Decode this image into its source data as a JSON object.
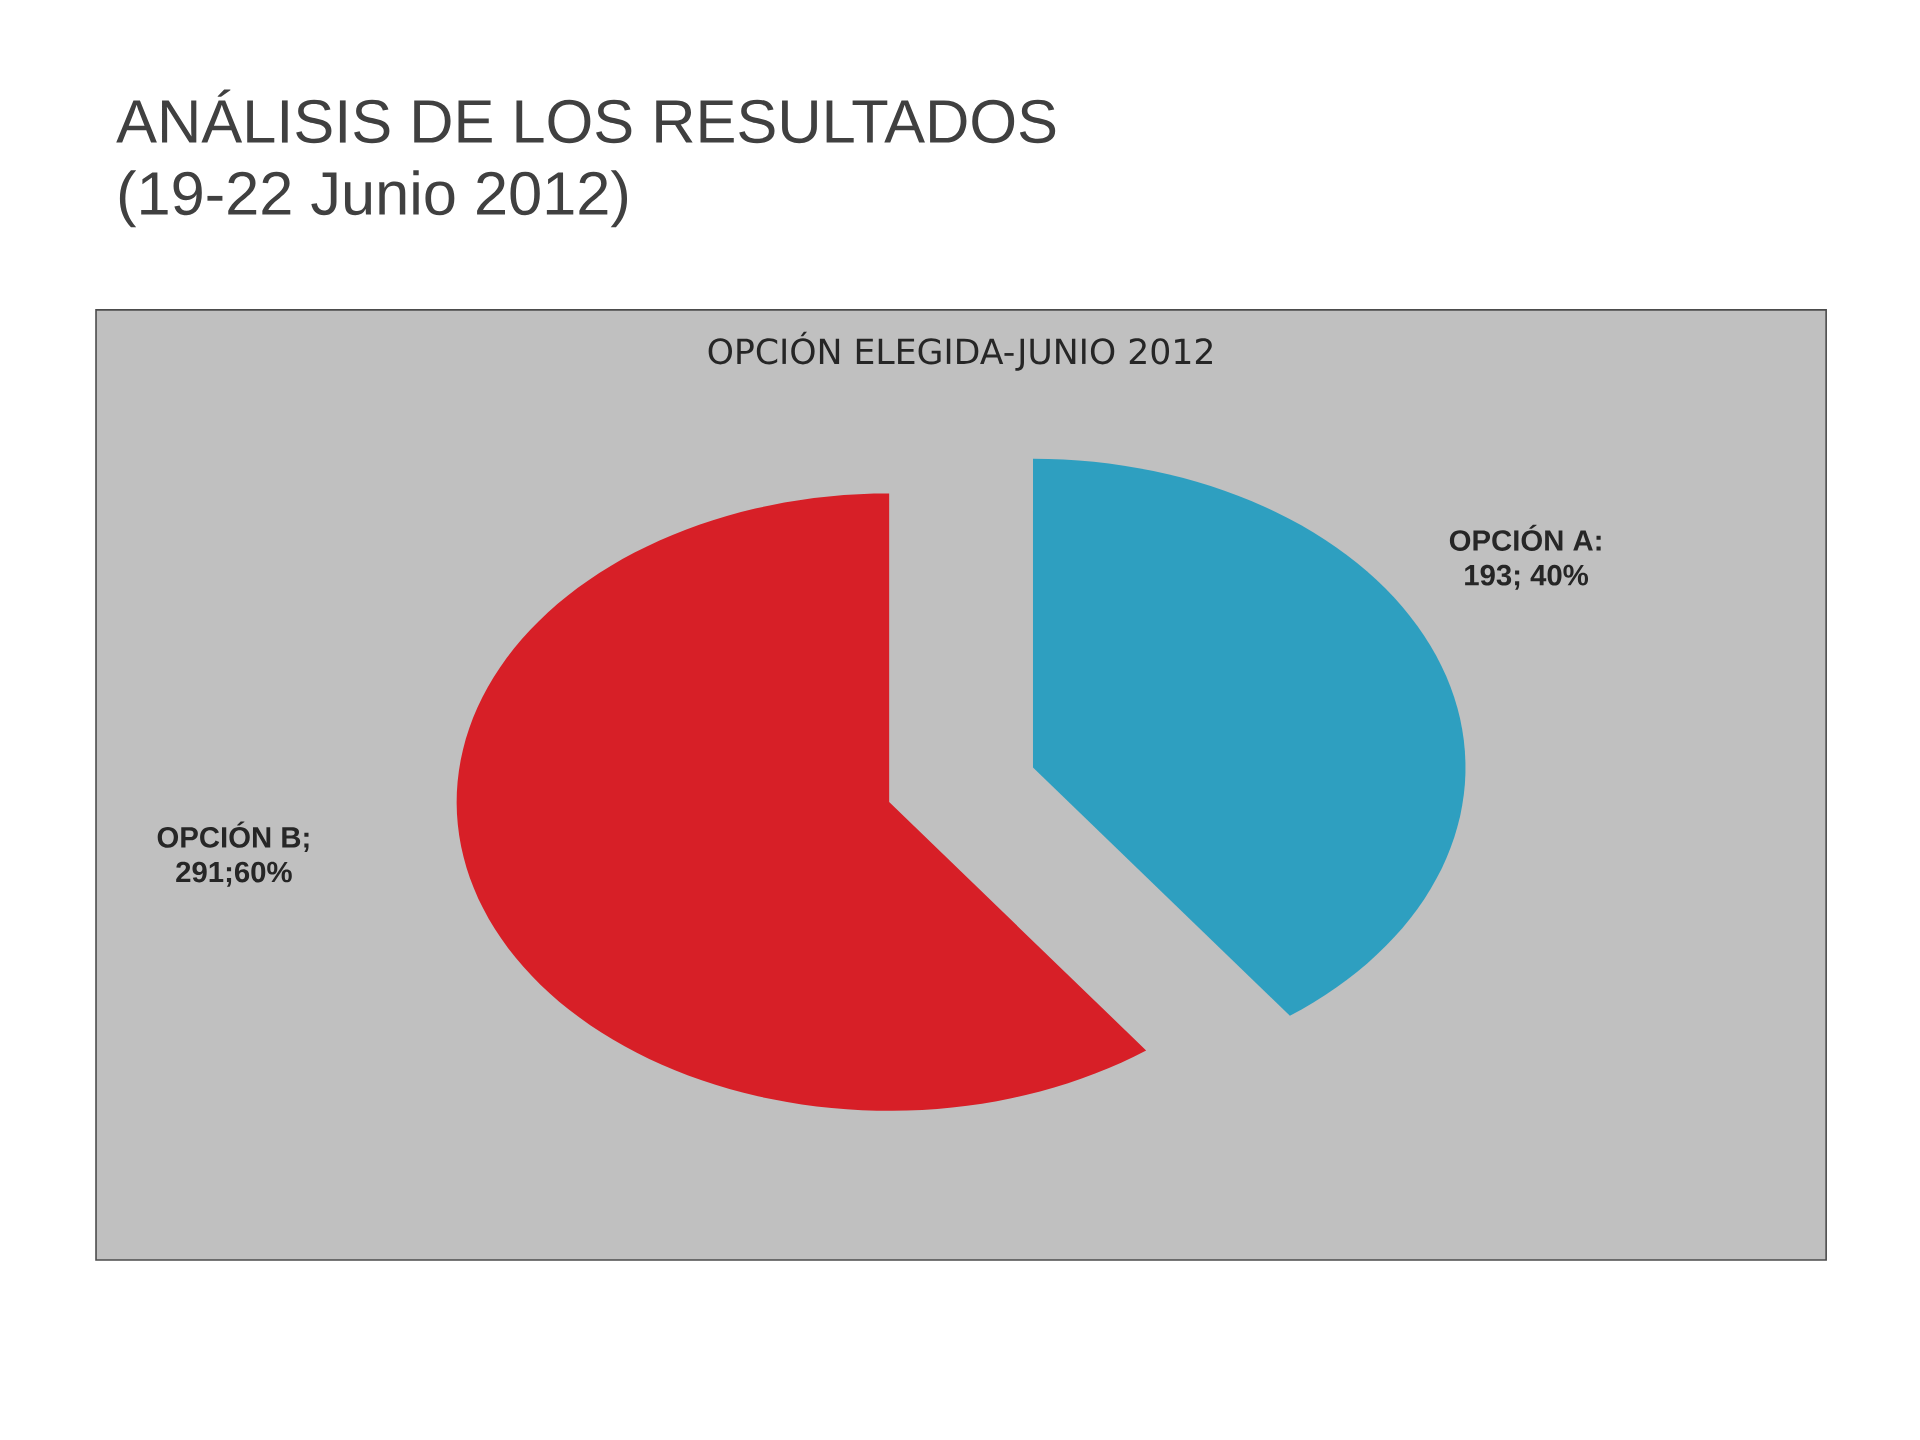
{
  "chart_data": {
    "type": "pie",
    "title": "ANÁLISIS DE LOS RESULTADOS (19-22 Junio 2012)",
    "subtitle": "OPCIÓN ELEGIDA-JUNIO 2012",
    "categories": [
      "OPCIÓN A",
      "OPCIÓN B"
    ],
    "values": [
      193,
      291
    ],
    "colors": [
      "#2e9fc0",
      "#d71f27"
    ],
    "value_labels": [
      ": 193; 40%",
      "; 291;60%"
    ]
  }
}
